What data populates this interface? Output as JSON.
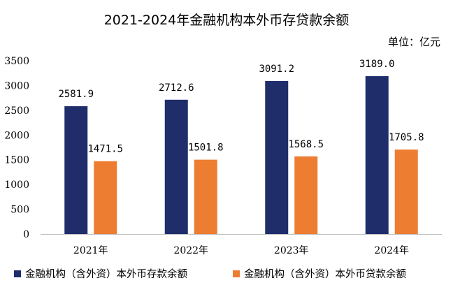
{
  "chart_data": {
    "type": "bar",
    "title": "2021-2024年金融机构本外币存贷款余额",
    "unit": "单位：亿元",
    "categories": [
      "2021年",
      "2022年",
      "2023年",
      "2024年"
    ],
    "series": [
      {
        "name": "金融机构（含外资）本外币存款余额",
        "color": "#1f2d6b",
        "values": [
          2581.9,
          2712.6,
          3091.2,
          3189.0
        ],
        "labels": [
          "2581.9",
          "2712.6",
          "3091.2",
          "3189.0"
        ]
      },
      {
        "name": "金融机构（含外资）本外币贷款余额",
        "color": "#ed7d31",
        "values": [
          1471.5,
          1501.8,
          1568.5,
          1705.8
        ],
        "labels": [
          "1471.5",
          "1501.8",
          "1568.5",
          "1705.8"
        ]
      }
    ],
    "ylim": [
      0,
      3500
    ],
    "yticks": [
      "0",
      "500",
      "1000",
      "1500",
      "2000",
      "2500",
      "3000",
      "3500"
    ],
    "legend_position": "bottom",
    "grid": false
  }
}
